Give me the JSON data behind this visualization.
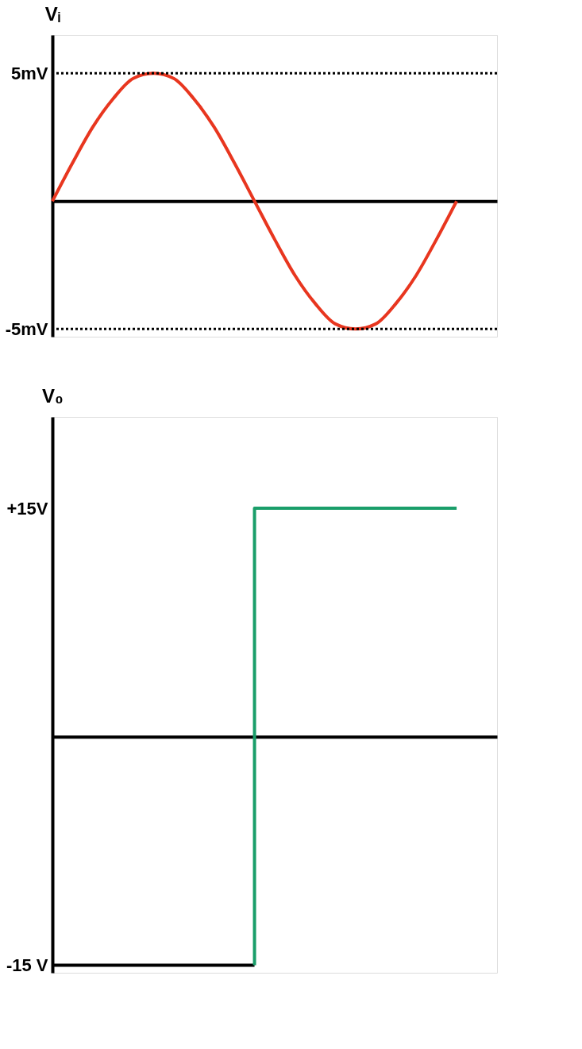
{
  "chart_data": [
    {
      "type": "line",
      "ylabel": "Vᵢ",
      "tick_labels": "y",
      "ylim": [
        -5.3,
        6.5
      ],
      "yticks": [
        {
          "value": 5,
          "label": "5mV"
        },
        {
          "value": -5,
          "label": "-5mV"
        }
      ],
      "categories": [
        null,
        null,
        null,
        null,
        null,
        null,
        null,
        null,
        null,
        null,
        null,
        null,
        null,
        null,
        null,
        null,
        null,
        null,
        null,
        null,
        null,
        null,
        null
      ],
      "series": [
        {
          "color": "#e8361f",
          "values": [
            0,
            1.5,
            2.9,
            4,
            4.8,
            5,
            4.8,
            4,
            2.9,
            1.5,
            0,
            -1.5,
            -2.9,
            -4,
            -4.8,
            -5,
            -4.8,
            -4,
            -2.9,
            -1.5,
            0,
            null,
            null
          ]
        }
      ],
      "ref_lines": [
        {
          "axis": "y",
          "value": 5,
          "line_style": "dotted",
          "color": "#000000"
        },
        {
          "axis": "y",
          "value": -5,
          "line_style": "dotted",
          "color": "#000000"
        }
      ]
    },
    {
      "type": "line",
      "ylabel": "V₀",
      "tick_labels": "y",
      "ylim": [
        -15.5,
        21
      ],
      "yticks": [
        {
          "value": 15,
          "label": "+15V"
        },
        {
          "value": -15,
          "label": "-15 V"
        }
      ],
      "categories": [
        null,
        null,
        null,
        null,
        null,
        null,
        null,
        null,
        null,
        null,
        null,
        null,
        null,
        null,
        null,
        null,
        null,
        null,
        null,
        null,
        null,
        null,
        null
      ],
      "series": [
        {
          "color": "#000000",
          "values": [
            -15,
            -15,
            -15,
            -15,
            -15,
            -15,
            -15,
            -15,
            -15,
            -15,
            -15,
            null,
            null,
            null,
            null,
            null,
            null,
            null,
            null,
            null,
            null,
            null,
            null
          ]
        },
        {
          "color": "#1a9e6a",
          "type": "step",
          "values": [
            null,
            null,
            null,
            null,
            null,
            null,
            null,
            null,
            null,
            null,
            -15,
            15,
            15,
            15,
            15,
            15,
            15,
            15,
            15,
            15,
            15,
            null,
            null
          ]
        }
      ]
    }
  ]
}
